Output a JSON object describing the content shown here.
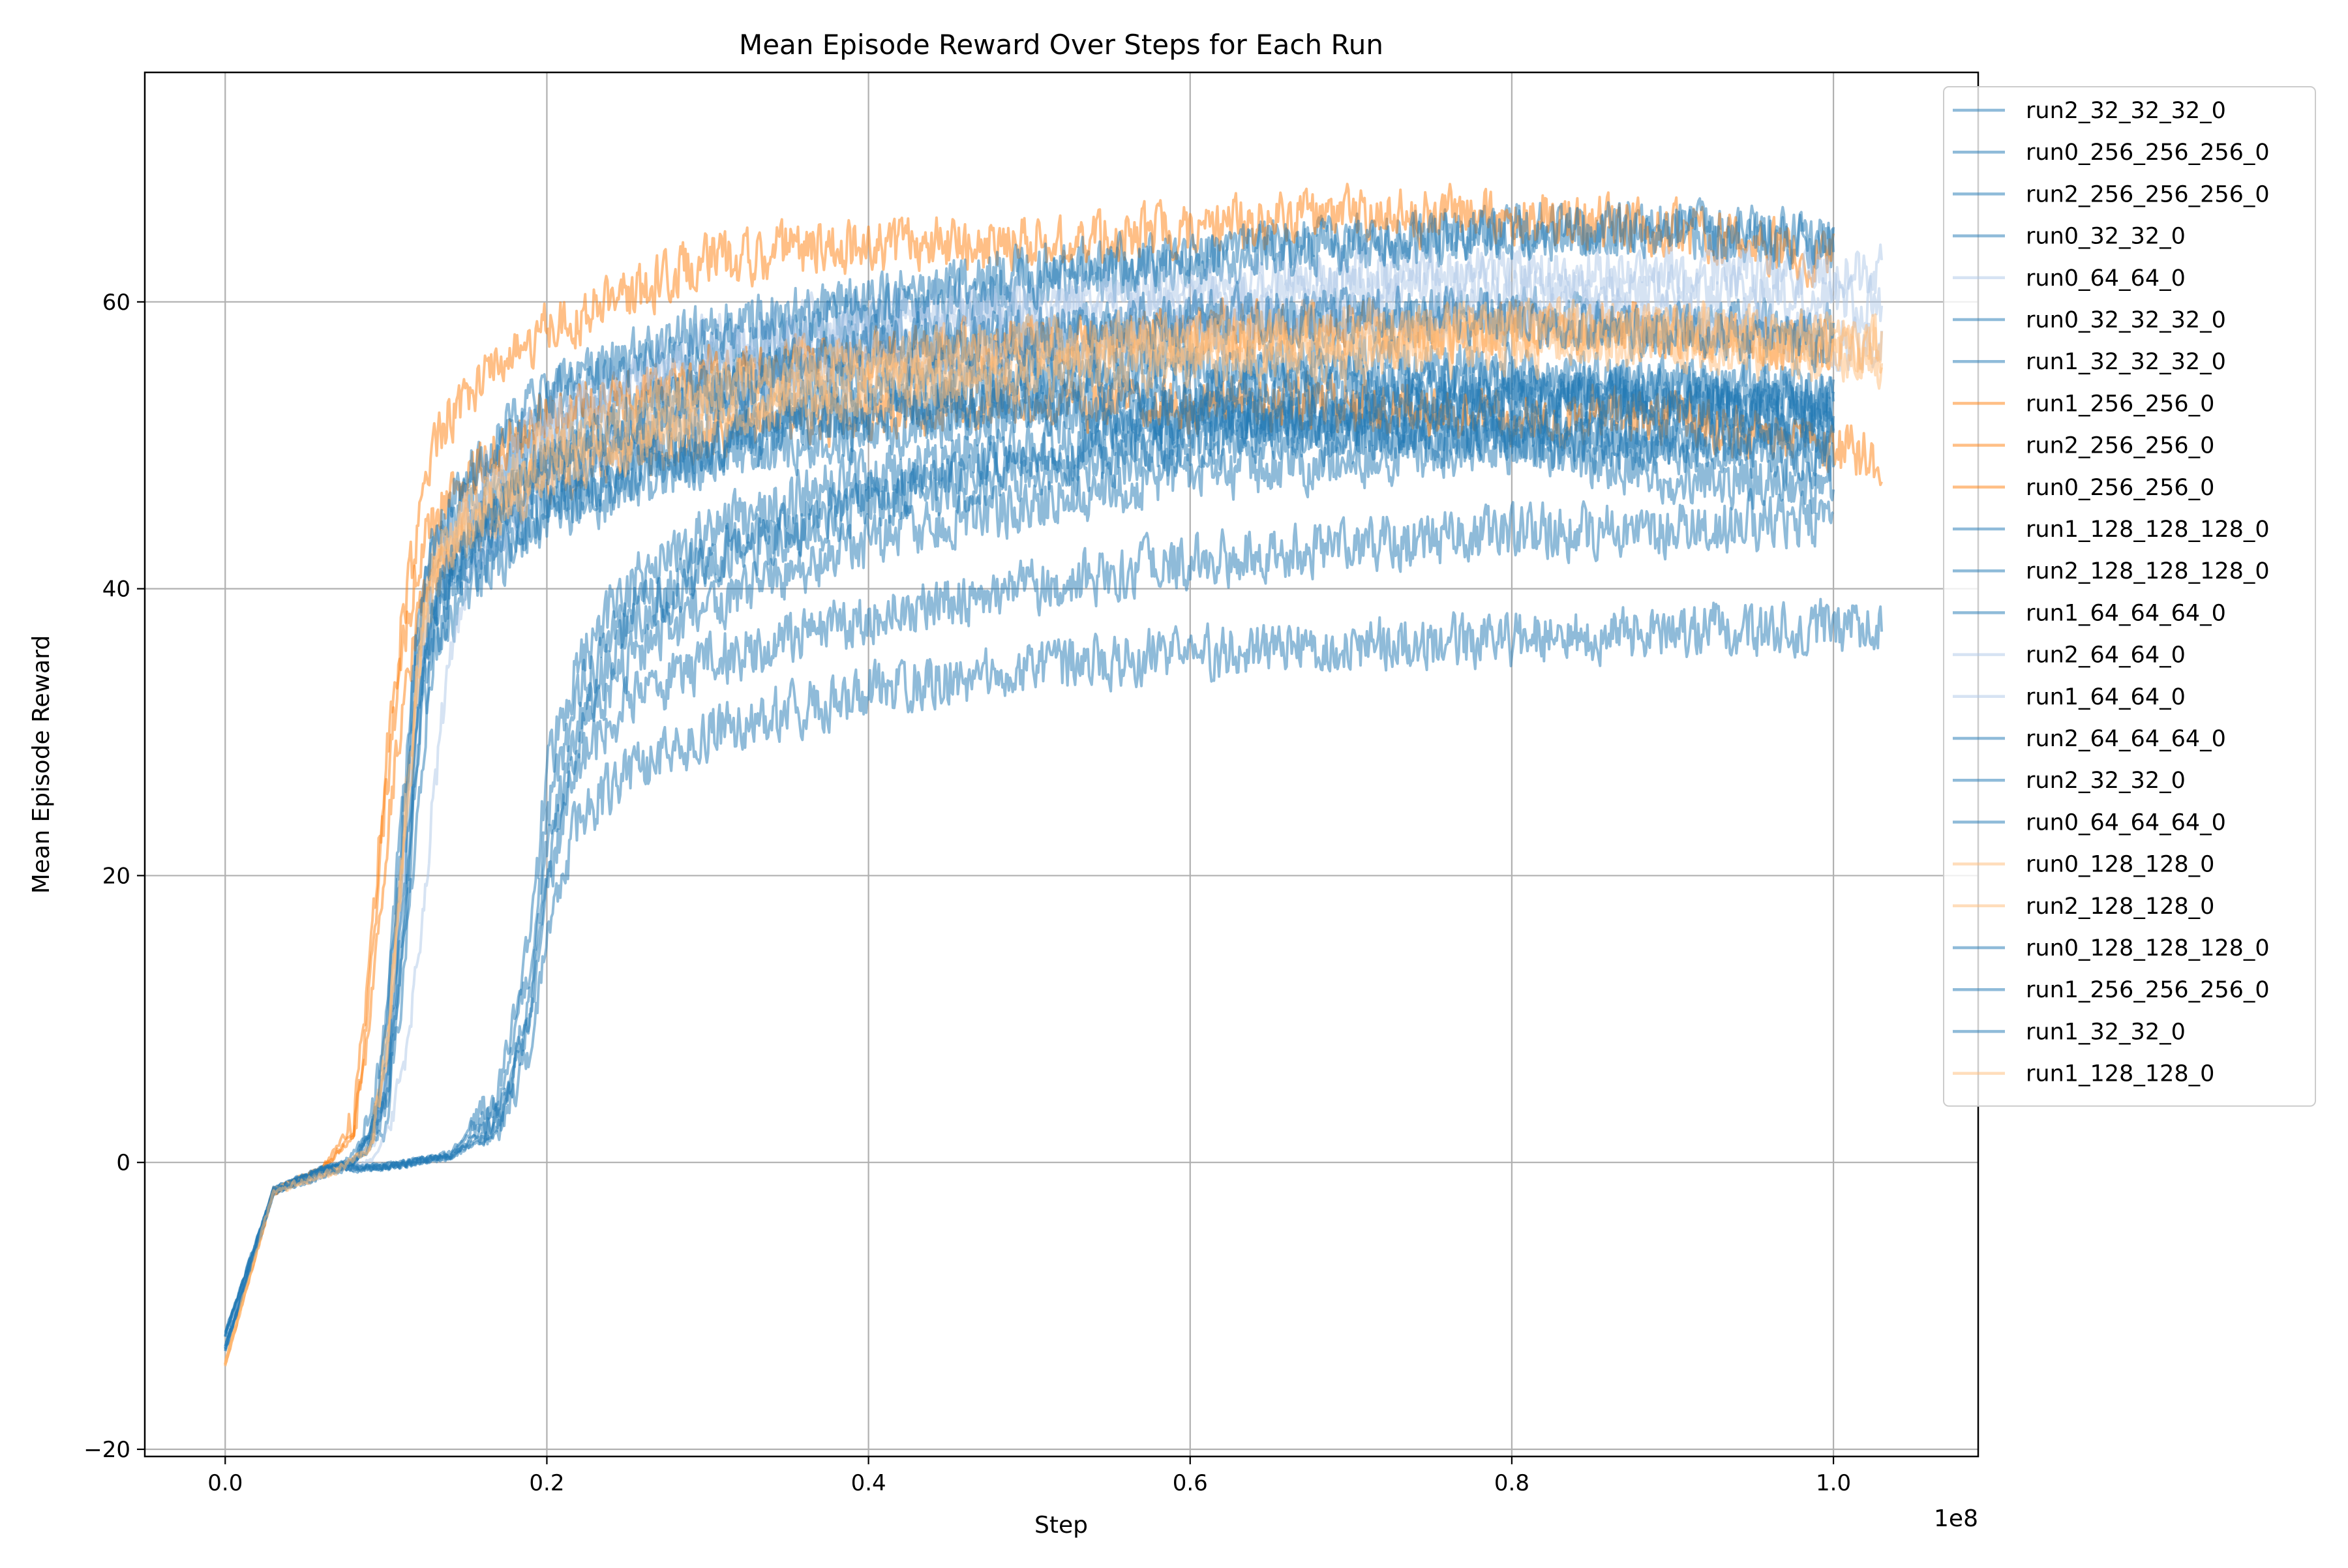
{
  "chart_data": {
    "type": "line",
    "title": "Mean Episode Reward Over Steps for Each Run",
    "xlabel": "Step",
    "ylabel": "Mean Episode Reward",
    "x_offset_label": "1e8",
    "x_scale": 100000000,
    "xlim": [
      -5000000,
      109000000
    ],
    "ylim": [
      -20.5,
      76
    ],
    "x_ticks": [
      0,
      20000000,
      40000000,
      60000000,
      80000000,
      100000000
    ],
    "x_tick_labels": [
      "0.0",
      "0.2",
      "0.4",
      "0.6",
      "0.8",
      "1.0"
    ],
    "y_ticks": [
      -20,
      0,
      20,
      40,
      60
    ],
    "y_tick_labels": [
      "−20",
      "0",
      "20",
      "40",
      "60"
    ],
    "grid": true,
    "legend_position": "upper right, outside plot",
    "colors": {
      "blue": "#1f77b4",
      "orange": "#ff7f0e",
      "grid": "#b0b0b0"
    },
    "series": [
      {
        "name": "run2_32_32_32_0",
        "color": "#1f77b4",
        "opacity": 0.5,
        "x": [
          0,
          3000000,
          6000000,
          10000000,
          14000000,
          17000000,
          19000000,
          20000000,
          22000000,
          25000000,
          30000000,
          40000000,
          50000000,
          60000000,
          70000000,
          80000000,
          90000000,
          100000000
        ],
        "y": [
          -12,
          -2,
          -0.5,
          -0.3,
          0.5,
          3,
          10,
          20,
          31,
          37,
          42,
          46,
          49,
          51,
          52,
          53,
          53,
          53
        ]
      },
      {
        "name": "run0_256_256_256_0",
        "color": "#1f77b4",
        "opacity": 0.5,
        "x": [
          0,
          3000000,
          7000000,
          9000000,
          10000000,
          11000000,
          12000000,
          13000000,
          15000000,
          20000000,
          30000000,
          40000000,
          50000000,
          60000000,
          70000000,
          80000000,
          90000000,
          100000000
        ],
        "y": [
          -13,
          -2,
          -0.5,
          2,
          10,
          25,
          38,
          42,
          46,
          51,
          55,
          57,
          58,
          58,
          59,
          59,
          58,
          58
        ]
      },
      {
        "name": "run2_256_256_256_0",
        "color": "#1f77b4",
        "opacity": 0.5,
        "x": [
          0,
          3000000,
          7000000,
          9000000,
          10000000,
          11000000,
          12000000,
          13000000,
          15000000,
          20000000,
          30000000,
          40000000,
          50000000,
          60000000,
          70000000,
          80000000,
          90000000,
          100000000
        ],
        "y": [
          -13,
          -2,
          -0.5,
          1,
          8,
          22,
          36,
          43,
          47,
          53,
          57,
          59,
          61,
          63,
          64,
          65,
          65,
          64
        ]
      },
      {
        "name": "run0_32_32_0",
        "color": "#1f77b4",
        "opacity": 0.5,
        "x": [
          0,
          3000000,
          6000000,
          10000000,
          14000000,
          17000000,
          19000000,
          20000000,
          22000000,
          25000000,
          30000000,
          40000000,
          50000000,
          60000000,
          70000000,
          80000000,
          90000000,
          103000000
        ],
        "y": [
          -12,
          -2,
          -0.5,
          -0.3,
          0.4,
          2,
          8,
          16,
          24,
          27,
          30,
          33,
          34.5,
          35.5,
          36,
          36.5,
          37,
          37.5
        ]
      },
      {
        "name": "run0_64_64_0",
        "color": "#aec7e8",
        "opacity": 0.5,
        "x": [
          0,
          3000000,
          7000000,
          9000000,
          10000000,
          11000000,
          12000000,
          13000000,
          15000000,
          20000000,
          30000000,
          40000000,
          50000000,
          60000000,
          70000000,
          80000000,
          90000000,
          103000000
        ],
        "y": [
          -13,
          -2,
          -0.5,
          1,
          5,
          18,
          32,
          40,
          44,
          51,
          56,
          58,
          59,
          60,
          61,
          61,
          61,
          60
        ]
      },
      {
        "name": "run0_32_32_32_0",
        "color": "#1f77b4",
        "opacity": 0.5,
        "x": [
          0,
          3000000,
          6000000,
          10000000,
          14000000,
          17000000,
          19000000,
          20000000,
          22000000,
          25000000,
          30000000,
          40000000,
          50000000,
          60000000,
          70000000,
          80000000,
          90000000,
          100000000
        ],
        "y": [
          -12,
          -2,
          -0.5,
          -0.3,
          0.5,
          4,
          14,
          24,
          33,
          38,
          42,
          46,
          48,
          50,
          51,
          51,
          51,
          51
        ]
      },
      {
        "name": "run1_32_32_32_0",
        "color": "#1f77b4",
        "opacity": 0.5,
        "x": [
          0,
          3000000,
          6000000,
          10000000,
          14000000,
          17000000,
          19000000,
          20000000,
          22000000,
          25000000,
          30000000,
          40000000,
          50000000,
          60000000,
          70000000,
          80000000,
          90000000,
          100000000
        ],
        "y": [
          -12,
          -2,
          -0.5,
          -0.3,
          0.6,
          5,
          16,
          27,
          35,
          40,
          44,
          48,
          50,
          52,
          53,
          54,
          54,
          54
        ]
      },
      {
        "name": "run1_256_256_0",
        "color": "#ff7f0e",
        "opacity": 0.5,
        "x": [
          0,
          3000000,
          6000000,
          8000000,
          9000000,
          10000000,
          11000000,
          12000000,
          13000000,
          15000000,
          20000000,
          30000000,
          40000000,
          50000000,
          60000000,
          70000000,
          80000000,
          90000000,
          100000000
        ],
        "y": [
          -14,
          -2,
          -0.5,
          2,
          12,
          26,
          36,
          42,
          45,
          48,
          52,
          55,
          56,
          57,
          58,
          58,
          58,
          58,
          57
        ]
      },
      {
        "name": "run2_256_256_0",
        "color": "#ff7f0e",
        "opacity": 0.5,
        "x": [
          0,
          3000000,
          6000000,
          8000000,
          9000000,
          10000000,
          11000000,
          12000000,
          13000000,
          15000000,
          20000000,
          30000000,
          40000000,
          50000000,
          60000000,
          70000000,
          80000000,
          90000000,
          100000000
        ],
        "y": [
          -14,
          -2,
          -0.5,
          3,
          14,
          28,
          38,
          44,
          50,
          54,
          58,
          63,
          64,
          64,
          65,
          66,
          66,
          65,
          63
        ]
      },
      {
        "name": "run0_256_256_0",
        "color": "#ff7f0e",
        "opacity": 0.5,
        "x": [
          0,
          3000000,
          6000000,
          8000000,
          9000000,
          10000000,
          11000000,
          12000000,
          13000000,
          15000000,
          20000000,
          30000000,
          40000000,
          50000000,
          60000000,
          70000000,
          80000000,
          90000000,
          103000000
        ],
        "y": [
          -14,
          -2,
          -0.5,
          2,
          10,
          22,
          32,
          38,
          41,
          44,
          48,
          51,
          52,
          53,
          53,
          53,
          52,
          52,
          49
        ]
      },
      {
        "name": "run1_128_128_128_0",
        "color": "#1f77b4",
        "opacity": 0.5,
        "x": [
          0,
          3000000,
          6000000,
          8000000,
          10000000,
          11000000,
          12000000,
          13000000,
          15000000,
          20000000,
          30000000,
          40000000,
          50000000,
          60000000,
          70000000,
          80000000,
          90000000,
          100000000
        ],
        "y": [
          -13,
          -2,
          -0.5,
          0,
          4,
          15,
          30,
          38,
          42,
          46,
          50,
          52,
          53,
          52,
          51,
          50,
          48,
          47
        ]
      },
      {
        "name": "run2_128_128_128_0",
        "color": "#1f77b4",
        "opacity": 0.5,
        "x": [
          0,
          3000000,
          6000000,
          8000000,
          10000000,
          11000000,
          12000000,
          13000000,
          15000000,
          20000000,
          30000000,
          40000000,
          50000000,
          60000000,
          70000000,
          80000000,
          90000000,
          100000000
        ],
        "y": [
          -13,
          -2,
          -0.5,
          0,
          6,
          20,
          34,
          40,
          44,
          49,
          53,
          55,
          56,
          56,
          56,
          55,
          54,
          53
        ]
      },
      {
        "name": "run1_64_64_64_0",
        "color": "#1f77b4",
        "opacity": 0.5,
        "x": [
          0,
          3000000,
          6000000,
          8000000,
          10000000,
          11000000,
          12000000,
          13000000,
          15000000,
          20000000,
          30000000,
          40000000,
          50000000,
          60000000,
          70000000,
          80000000,
          90000000,
          100000000
        ],
        "y": [
          -13,
          -2,
          -0.5,
          0,
          3,
          12,
          26,
          36,
          40,
          45,
          49,
          51,
          52,
          52,
          52,
          51,
          50,
          49
        ]
      },
      {
        "name": "run2_64_64_0",
        "color": "#aec7e8",
        "opacity": 0.5,
        "x": [
          0,
          3000000,
          7000000,
          9000000,
          10000000,
          11000000,
          12000000,
          13000000,
          15000000,
          20000000,
          30000000,
          40000000,
          50000000,
          60000000,
          70000000,
          80000000,
          90000000,
          103000000
        ],
        "y": [
          -13,
          -2,
          -0.5,
          1,
          6,
          20,
          34,
          42,
          46,
          52,
          57,
          59,
          60,
          61,
          62,
          62,
          62,
          62
        ]
      },
      {
        "name": "run1_64_64_0",
        "color": "#aec7e8",
        "opacity": 0.5,
        "x": [
          0,
          3000000,
          7000000,
          9000000,
          10000000,
          11000000,
          12000000,
          13000000,
          14000000,
          15000000,
          20000000,
          30000000,
          40000000,
          50000000,
          60000000,
          70000000,
          80000000,
          90000000,
          103000000
        ],
        "y": [
          -13,
          -2,
          -0.5,
          0,
          2,
          6,
          14,
          26,
          36,
          41,
          48,
          53,
          56,
          57,
          58,
          59,
          59,
          59,
          57
        ]
      },
      {
        "name": "run2_64_64_64_0",
        "color": "#1f77b4",
        "opacity": 0.5,
        "x": [
          0,
          3000000,
          6000000,
          8000000,
          10000000,
          11000000,
          12000000,
          13000000,
          15000000,
          20000000,
          30000000,
          40000000,
          50000000,
          60000000,
          70000000,
          80000000,
          90000000,
          100000000
        ],
        "y": [
          -13,
          -2,
          -0.5,
          0,
          5,
          18,
          32,
          39,
          43,
          48,
          52,
          54,
          55,
          55,
          55,
          54,
          53,
          52
        ]
      },
      {
        "name": "run2_32_32_0",
        "color": "#1f77b4",
        "opacity": 0.5,
        "x": [
          0,
          3000000,
          6000000,
          10000000,
          14000000,
          17000000,
          19000000,
          20000000,
          22000000,
          25000000,
          30000000,
          40000000,
          50000000,
          60000000,
          70000000,
          80000000,
          90000000,
          100000000
        ],
        "y": [
          -12,
          -2,
          -0.5,
          -0.3,
          0.4,
          2.5,
          10,
          19,
          28,
          32,
          35,
          38,
          40,
          42,
          43,
          44,
          44,
          45
        ]
      },
      {
        "name": "run0_64_64_64_0",
        "color": "#1f77b4",
        "opacity": 0.5,
        "x": [
          0,
          3000000,
          6000000,
          8000000,
          10000000,
          11000000,
          12000000,
          13000000,
          15000000,
          20000000,
          30000000,
          40000000,
          50000000,
          60000000,
          70000000,
          80000000,
          90000000,
          100000000
        ],
        "y": [
          -13,
          -2,
          -0.5,
          0,
          4,
          14,
          28,
          37,
          41,
          46,
          50,
          53,
          54,
          54,
          54,
          53,
          53,
          52
        ]
      },
      {
        "name": "run0_128_128_0",
        "color": "#ffbb78",
        "opacity": 0.5,
        "x": [
          0,
          3000000,
          7000000,
          9000000,
          10000000,
          11000000,
          12000000,
          13000000,
          15000000,
          20000000,
          30000000,
          40000000,
          50000000,
          60000000,
          70000000,
          80000000,
          90000000,
          103000000
        ],
        "y": [
          -14,
          -2,
          -0.5,
          1,
          8,
          22,
          36,
          42,
          45,
          49,
          53,
          55,
          56,
          57,
          57,
          58,
          58,
          57
        ]
      },
      {
        "name": "run2_128_128_0",
        "color": "#ffbb78",
        "opacity": 0.5,
        "x": [
          0,
          3000000,
          7000000,
          9000000,
          10000000,
          11000000,
          12000000,
          13000000,
          15000000,
          20000000,
          30000000,
          40000000,
          50000000,
          60000000,
          70000000,
          80000000,
          90000000,
          103000000
        ],
        "y": [
          -14,
          -2,
          -0.5,
          1,
          7,
          20,
          34,
          41,
          44,
          48,
          52,
          54,
          55,
          56,
          56,
          57,
          57,
          56
        ]
      },
      {
        "name": "run0_128_128_128_0",
        "color": "#1f77b4",
        "opacity": 0.5,
        "x": [
          0,
          3000000,
          6000000,
          8000000,
          10000000,
          11000000,
          12000000,
          13000000,
          15000000,
          20000000,
          30000000,
          40000000,
          50000000,
          60000000,
          70000000,
          80000000,
          90000000,
          100000000
        ],
        "y": [
          -13,
          -2,
          -0.5,
          0,
          4,
          16,
          31,
          39,
          43,
          49,
          54,
          57,
          58,
          59,
          59,
          59,
          58,
          57
        ]
      },
      {
        "name": "run1_256_256_256_0",
        "color": "#1f77b4",
        "opacity": 0.5,
        "x": [
          0,
          3000000,
          7000000,
          9000000,
          10000000,
          11000000,
          12000000,
          13000000,
          15000000,
          20000000,
          30000000,
          40000000,
          50000000,
          60000000,
          70000000,
          80000000,
          90000000,
          100000000
        ],
        "y": [
          -13,
          -2,
          -0.5,
          1,
          9,
          24,
          38,
          44,
          48,
          54,
          58,
          60,
          62,
          63,
          64,
          65,
          65,
          64
        ]
      },
      {
        "name": "run1_32_32_0",
        "color": "#1f77b4",
        "opacity": 0.5,
        "x": [
          0,
          3000000,
          6000000,
          10000000,
          14000000,
          17000000,
          19000000,
          20000000,
          22000000,
          25000000,
          30000000,
          40000000,
          50000000,
          60000000,
          70000000,
          80000000,
          90000000,
          100000000
        ],
        "y": [
          -12,
          -2,
          -0.5,
          -0.3,
          0.5,
          3,
          12,
          22,
          30,
          35,
          39,
          43,
          46,
          48,
          49,
          50,
          50,
          50
        ]
      },
      {
        "name": "run1_128_128_0",
        "color": "#ffbb78",
        "opacity": 0.5,
        "x": [
          0,
          3000000,
          7000000,
          9000000,
          10000000,
          11000000,
          12000000,
          13000000,
          15000000,
          20000000,
          30000000,
          40000000,
          50000000,
          60000000,
          70000000,
          80000000,
          90000000,
          103000000
        ],
        "y": [
          -14,
          -2,
          -0.5,
          1,
          7,
          21,
          35,
          42,
          45,
          50,
          54,
          56,
          57,
          57,
          58,
          58,
          58,
          57
        ]
      }
    ]
  }
}
